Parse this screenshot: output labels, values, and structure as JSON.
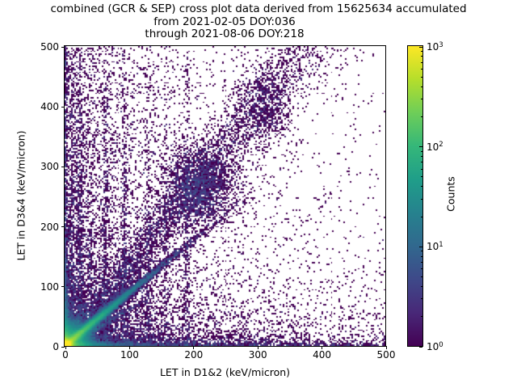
{
  "chart_data": {
    "type": "heatmap",
    "subtype": "hist2d-log-counts",
    "title": "combined (GCR & SEP) cross plot data derived from 15625634 accumulated\nfrom 2021-02-05 DOY:036\nthrough 2021-08-06 DOY:218",
    "title_line1": "combined (GCR & SEP) cross plot data derived from 15625634 accumulated",
    "title_line2": "from 2021-02-05 DOY:036",
    "title_line3": "through 2021-08-06 DOY:218",
    "xlabel": "LET in D1&2 (keV/micron)",
    "ylabel": "LET in D3&4 (keV/micron)",
    "xlim": [
      0,
      500
    ],
    "ylim": [
      0,
      500
    ],
    "xticks": [
      0,
      100,
      200,
      300,
      400,
      500
    ],
    "yticks": [
      0,
      100,
      200,
      300,
      400,
      500
    ],
    "grid": false,
    "background_color": "#ffffff",
    "bins": [
      200,
      200
    ],
    "colorbar": {
      "label": "Counts",
      "scale": "log",
      "range": [
        1,
        1000
      ],
      "tick_exponents": [
        0,
        1,
        2,
        3
      ],
      "minor_ticks_per_decade": [
        2,
        3,
        4,
        5,
        6,
        7,
        8,
        9
      ],
      "colormap": "viridis",
      "colormap_stops": [
        "#440154",
        "#482878",
        "#3e4989",
        "#31688e",
        "#26828e",
        "#1f9e89",
        "#35b779",
        "#6ece58",
        "#b5de2b",
        "#fde725"
      ]
    },
    "density_features": [
      {
        "kind": "core",
        "x": 0,
        "y": 0,
        "a1": 2000,
        "s1": 6,
        "a2": 150,
        "s2": 18
      },
      {
        "kind": "streak",
        "slope": 0.88,
        "len": 50,
        "width": 3.2,
        "amp": 300
      },
      {
        "kind": "streak",
        "slope": 0.6,
        "len": 45,
        "width": 2.6,
        "amp": 25
      },
      {
        "kind": "streak",
        "slope": 1.05,
        "len": 40,
        "width": 2.6,
        "amp": 35
      },
      {
        "kind": "band",
        "slope": 1.32,
        "width": 9,
        "grow": 0.055,
        "amp": 1.5,
        "xdecay": 250,
        "x0": 10,
        "x1": 420
      },
      {
        "kind": "blob",
        "x": 210,
        "y": 265,
        "sx": 30,
        "sy": 35,
        "amp": 2.2
      },
      {
        "kind": "blob",
        "x": 310,
        "y": 395,
        "sx": 20,
        "sy": 35,
        "amp": 1.0
      },
      {
        "kind": "vstripe",
        "x": 1,
        "amp": 3.0,
        "d": 500,
        "w": 1.6
      },
      {
        "kind": "vstripe",
        "x": 1,
        "amp": 8,
        "d": 70,
        "w": 2.2
      },
      {
        "kind": "vstripe",
        "x": 2,
        "amp": 60,
        "d": 28,
        "w": 3
      },
      {
        "kind": "vstripe",
        "x": 12,
        "amp": 1.6,
        "d": 180,
        "w": 2.2
      },
      {
        "kind": "vstripe",
        "x": 24,
        "amp": 2.0,
        "d": 240,
        "w": 2.6
      },
      {
        "kind": "vstripe",
        "x": 40,
        "amp": 1.1,
        "d": 160,
        "w": 2.2
      },
      {
        "kind": "vstripe",
        "x": 63,
        "amp": 1.4,
        "d": 260,
        "w": 2.6
      },
      {
        "kind": "vstripe",
        "x": 94,
        "amp": 1.1,
        "d": 320,
        "w": 2.8
      },
      {
        "kind": "vstripe",
        "x": 130,
        "amp": 0.8,
        "d": 280,
        "w": 2.8
      },
      {
        "kind": "vstripe",
        "x": 157,
        "amp": 0.55,
        "d": 220,
        "w": 2.6
      },
      {
        "kind": "vstripe",
        "x": 190,
        "amp": 0.8,
        "d": 380,
        "w": 3.2
      },
      {
        "kind": "hband",
        "y": 2,
        "amp": 80,
        "d": 28,
        "w": 3
      },
      {
        "kind": "hband",
        "y": 1.2,
        "amp": 2.8,
        "d": 600,
        "w": 1.6
      },
      {
        "kind": "hband",
        "y": 6,
        "amp": 1.6,
        "d": 250,
        "w": 5
      },
      {
        "kind": "bg",
        "amp": 2.2,
        "xd": 70,
        "yd": 40
      },
      {
        "kind": "bg",
        "amp": 1.0,
        "xd": 35,
        "yd": 90
      },
      {
        "kind": "bg",
        "amp": 0.9,
        "xd": 55,
        "yd": 400
      },
      {
        "kind": "bg",
        "amp": 0.35,
        "xd": 130,
        "yd": 800
      },
      {
        "kind": "bg",
        "amp": 1.1,
        "xd": 280,
        "yd": 28
      },
      {
        "kind": "bg",
        "amp": 0.35,
        "xd": 450,
        "yd": 90
      },
      {
        "kind": "sparse",
        "p": 0.012
      }
    ]
  }
}
